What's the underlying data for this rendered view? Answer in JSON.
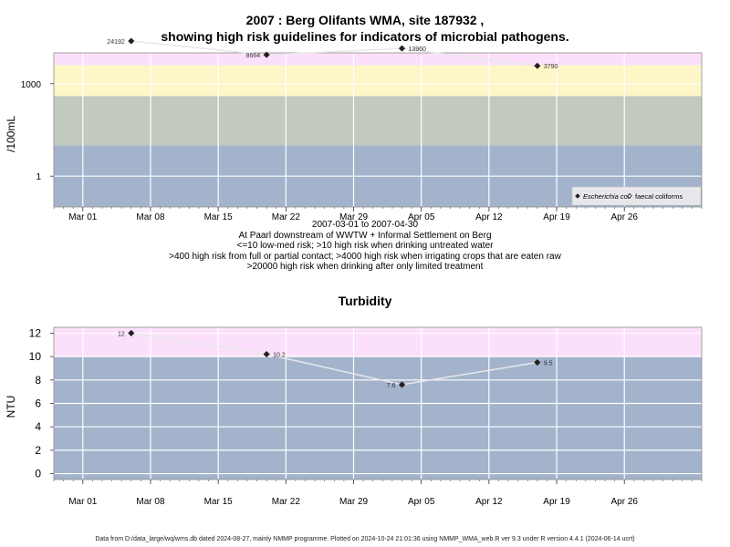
{
  "title_line1": "2007 : Berg Olifants WMA, site 187932 ,",
  "title_line2": "showing high risk guidelines for indicators of microbial pathogens.",
  "subtitle_lines": [
    "2007-03-01 to 2007-04-30",
    "At Paarl downstream of WWTW + Informal Settlement on Berg",
    "<=10 low-med risk; >10 high risk when drinking untreated water",
    ">400 high risk from full or partial contact; >4000 high risk when irrigating crops that are eaten raw",
    ">20000 high risk when drinking after only limited treatment"
  ],
  "footer": "Data from D:/data_large/wq/wms.db dated 2024-08-27, mainly NMMP programme. Plotted on 2024-10-24 21:01:36 using NMMP_WMA_web.R ver 9.3 under R version 4.4.1 (2024-06-14 ucrt)",
  "colors": {
    "band_blue": "#a3b3cc",
    "band_grey": "#c2cac0",
    "band_yellow": "#fdf6c6",
    "band_pink": "#fce0fb",
    "band_red": "#f9bcc9",
    "line": "#e8e8ea",
    "point": "#222222",
    "legend_bg": "#e8e8ec"
  },
  "chart_data": [
    {
      "type": "line",
      "title": "",
      "ylabel": "/100mL",
      "yscale": "log",
      "xlim": [
        "2007-02-26",
        "2007-05-04"
      ],
      "ylim": [
        0.1,
        10000
      ],
      "grid": true,
      "x_ticks": [
        {
          "date": "2007-03-01",
          "label": "Mar 01"
        },
        {
          "date": "2007-03-08",
          "label": "Mar 08"
        },
        {
          "date": "2007-03-15",
          "label": "Mar 15"
        },
        {
          "date": "2007-03-22",
          "label": "Mar 22"
        },
        {
          "date": "2007-03-29",
          "label": "Mar 29"
        },
        {
          "date": "2007-04-05",
          "label": "Apr 05"
        },
        {
          "date": "2007-04-12",
          "label": "Apr 12"
        },
        {
          "date": "2007-04-19",
          "label": "Apr 19"
        },
        {
          "date": "2007-04-26",
          "label": "Apr 26"
        }
      ],
      "y_ticks": [
        {
          "value": 1,
          "label": "1"
        },
        {
          "value": 1000,
          "label": "1000"
        }
      ],
      "bands": [
        {
          "from": 0.1,
          "to": 10,
          "color": "band_blue"
        },
        {
          "from": 10,
          "to": 400,
          "color": "band_grey"
        },
        {
          "from": 400,
          "to": 4000,
          "color": "band_yellow"
        },
        {
          "from": 4000,
          "to": 20000,
          "color": "band_pink"
        },
        {
          "from": 20000,
          "to": 30000,
          "color": "band_red"
        }
      ],
      "series": [
        {
          "name": "Escherichia coli",
          "legend_italic": true,
          "marker": "filled-diamond",
          "points": [
            {
              "x": "2007-03-06",
              "y": 24192,
              "label": "24192",
              "label_side": "left"
            },
            {
              "x": "2007-03-20",
              "y": 8664,
              "label": "8664",
              "label_side": "left"
            },
            {
              "x": "2007-04-03",
              "y": 13960,
              "label": "13960",
              "label_side": "right"
            },
            {
              "x": "2007-04-17",
              "y": 3790,
              "label": "3790",
              "label_side": "right"
            }
          ]
        },
        {
          "name": "faecal coliforms",
          "legend_italic": false,
          "marker": "open-diamond",
          "points": []
        }
      ],
      "legend": "bottom-right"
    },
    {
      "type": "line",
      "title": "Turbidity",
      "ylabel": "NTU",
      "yscale": "linear",
      "xlim": [
        "2007-02-26",
        "2007-05-04"
      ],
      "ylim": [
        -0.5,
        12.5
      ],
      "grid": true,
      "x_ticks": [
        {
          "date": "2007-03-01",
          "label": "Mar 01"
        },
        {
          "date": "2007-03-08",
          "label": "Mar 08"
        },
        {
          "date": "2007-03-15",
          "label": "Mar 15"
        },
        {
          "date": "2007-03-22",
          "label": "Mar 22"
        },
        {
          "date": "2007-03-29",
          "label": "Mar 29"
        },
        {
          "date": "2007-04-05",
          "label": "Apr 05"
        },
        {
          "date": "2007-04-12",
          "label": "Apr 12"
        },
        {
          "date": "2007-04-19",
          "label": "Apr 19"
        },
        {
          "date": "2007-04-26",
          "label": "Apr 26"
        }
      ],
      "y_ticks": [
        {
          "value": 0,
          "label": "0"
        },
        {
          "value": 2,
          "label": "2"
        },
        {
          "value": 4,
          "label": "4"
        },
        {
          "value": 6,
          "label": "6"
        },
        {
          "value": 8,
          "label": "8"
        },
        {
          "value": 10,
          "label": "10"
        },
        {
          "value": 12,
          "label": "12"
        }
      ],
      "bands": [
        {
          "from": -0.5,
          "to": 10,
          "color": "band_blue"
        },
        {
          "from": 10,
          "to": 12.5,
          "color": "band_pink"
        }
      ],
      "series": [
        {
          "name": "",
          "marker": "filled-diamond",
          "points": [
            {
              "x": "2007-03-06",
              "y": 12,
              "label": "12",
              "label_side": "left"
            },
            {
              "x": "2007-03-20",
              "y": 10.2,
              "label": "10.2",
              "label_side": "right"
            },
            {
              "x": "2007-04-03",
              "y": 7.6,
              "label": "7.6",
              "label_side": "left"
            },
            {
              "x": "2007-04-17",
              "y": 9.5,
              "label": "9.5",
              "label_side": "right"
            }
          ]
        }
      ]
    }
  ]
}
